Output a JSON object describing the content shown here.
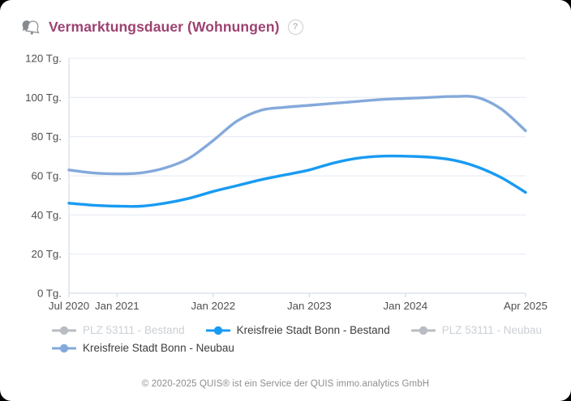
{
  "header": {
    "title": "Vermarktungsdauer (Wohnungen)",
    "title_color": "#9c4271",
    "help_label": "?"
  },
  "chart_data": {
    "type": "line",
    "title": "Vermarktungsdauer (Wohnungen)",
    "unit": "Tg.",
    "ylim": [
      0,
      120
    ],
    "yticks": [
      {
        "value": 0,
        "label": "0 Tg."
      },
      {
        "value": 20,
        "label": "20 Tg."
      },
      {
        "value": 40,
        "label": "40 Tg."
      },
      {
        "value": 60,
        "label": "60 Tg."
      },
      {
        "value": 80,
        "label": "80 Tg."
      },
      {
        "value": 100,
        "label": "100 Tg."
      },
      {
        "value": 120,
        "label": "120 Tg."
      }
    ],
    "x_axis": {
      "start_label": "Jul 2020",
      "end_label": "Apr 2025",
      "total_months": 57,
      "ticks": [
        {
          "month": 0,
          "label": "Jul 2020"
        },
        {
          "month": 6,
          "label": "Jan 2021"
        },
        {
          "month": 18,
          "label": "Jan 2022"
        },
        {
          "month": 30,
          "label": "Jan 2023"
        },
        {
          "month": 42,
          "label": "Jan 2024"
        },
        {
          "month": 57,
          "label": "Apr 2025"
        }
      ]
    },
    "grid": true,
    "legend_position": "bottom",
    "grid_color": "#e4e9f3",
    "axis_color": "#ccd5e5",
    "tick_label_color": "#4f4f4f",
    "series": [
      {
        "name": "PLZ 53111 - Bestand",
        "color": "#b9bdc2",
        "visible": false,
        "points": []
      },
      {
        "name": "Kreisfreie Stadt Bonn - Bestand",
        "color": "#189bf2",
        "visible": true,
        "points": [
          [
            0,
            46
          ],
          [
            3,
            45
          ],
          [
            6,
            44.5
          ],
          [
            9,
            44.5
          ],
          [
            12,
            46
          ],
          [
            15,
            48.5
          ],
          [
            18,
            52
          ],
          [
            21,
            55
          ],
          [
            24,
            58
          ],
          [
            27,
            60.5
          ],
          [
            30,
            63
          ],
          [
            33,
            66.5
          ],
          [
            36,
            69
          ],
          [
            39,
            70
          ],
          [
            42,
            70
          ],
          [
            45,
            69.5
          ],
          [
            48,
            68
          ],
          [
            51,
            64.5
          ],
          [
            54,
            59
          ],
          [
            57,
            51.5
          ]
        ]
      },
      {
        "name": "PLZ 53111 - Neubau",
        "color": "#b9bdc2",
        "visible": false,
        "points": []
      },
      {
        "name": "Kreisfreie Stadt Bonn - Neubau",
        "color": "#84a9db",
        "visible": true,
        "points": [
          [
            0,
            63
          ],
          [
            3,
            61.5
          ],
          [
            6,
            61
          ],
          [
            9,
            61.5
          ],
          [
            12,
            64
          ],
          [
            15,
            69
          ],
          [
            18,
            78
          ],
          [
            21,
            88
          ],
          [
            24,
            93.5
          ],
          [
            27,
            95
          ],
          [
            30,
            96
          ],
          [
            33,
            97
          ],
          [
            36,
            98
          ],
          [
            39,
            99
          ],
          [
            42,
            99.5
          ],
          [
            45,
            100
          ],
          [
            48,
            100.5
          ],
          [
            51,
            100
          ],
          [
            54,
            94
          ],
          [
            57,
            83
          ]
        ]
      }
    ]
  },
  "footer": {
    "copyright": "© 2020-2025 QUIS® ist ein Service der QUIS immo.analytics GmbH"
  }
}
